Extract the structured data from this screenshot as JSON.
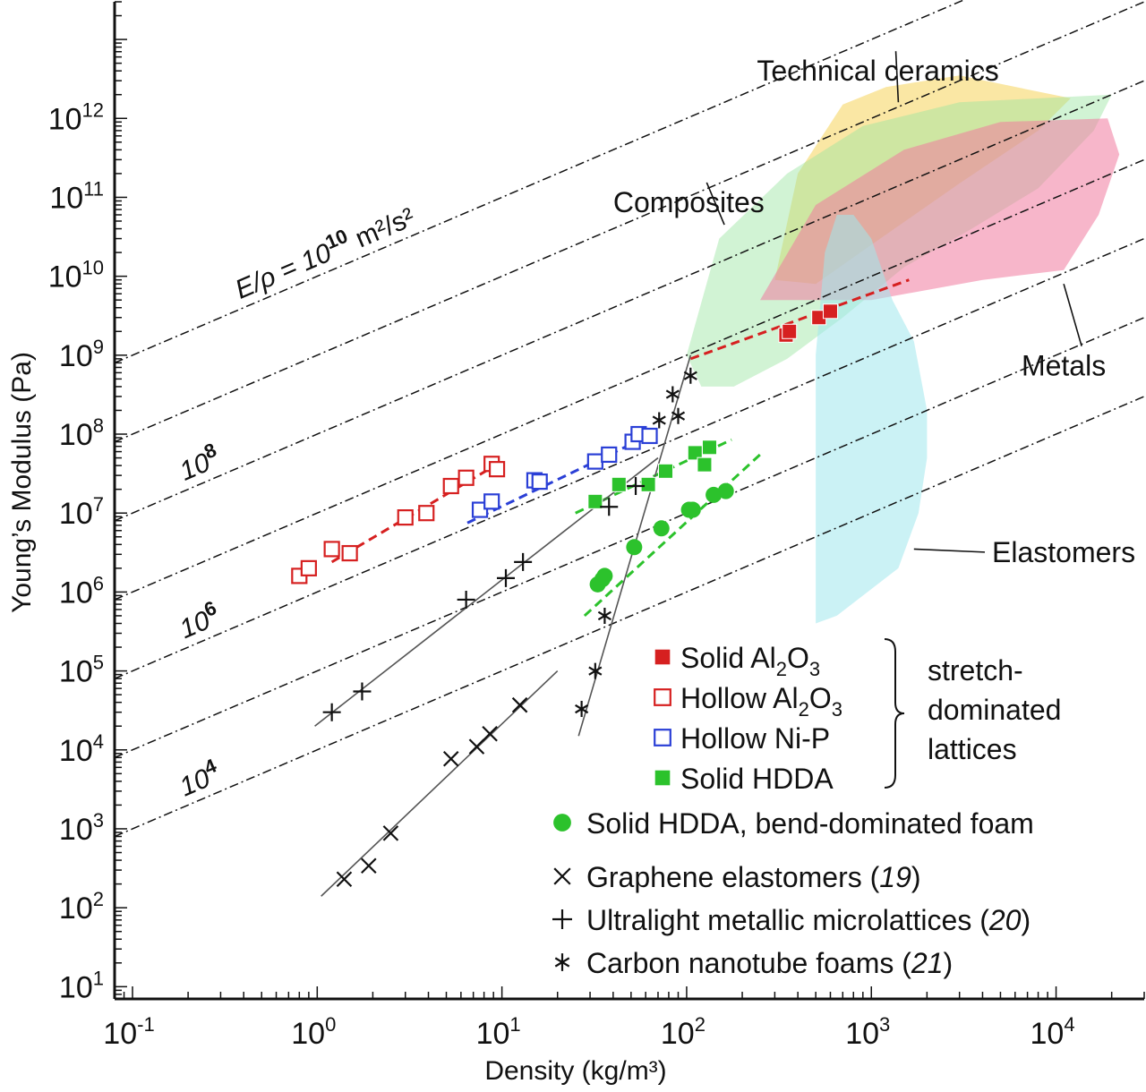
{
  "chart_data": {
    "type": "scatter",
    "xlabel": "Density (kg/m³)",
    "ylabel": "Young’s Modulus (Pa)",
    "x_scale": "log",
    "y_scale": "log",
    "xlim": [
      0.08,
      30000
    ],
    "ylim": [
      7,
      30000000000000.0
    ],
    "x_ticks": [
      {
        "value": 0.1,
        "mant": "10",
        "exp": "-1"
      },
      {
        "value": 1,
        "mant": "10",
        "exp": "0"
      },
      {
        "value": 10,
        "mant": "10",
        "exp": "1"
      },
      {
        "value": 100,
        "mant": "10",
        "exp": "2"
      },
      {
        "value": 1000,
        "mant": "10",
        "exp": "3"
      },
      {
        "value": 10000,
        "mant": "10",
        "exp": "4"
      }
    ],
    "y_ticks": [
      {
        "value": 10,
        "mant": "10",
        "exp": "1"
      },
      {
        "value": 100,
        "mant": "10",
        "exp": "2"
      },
      {
        "value": 1000,
        "mant": "10",
        "exp": "3"
      },
      {
        "value": 10000,
        "mant": "10",
        "exp": "4"
      },
      {
        "value": 100000,
        "mant": "10",
        "exp": "5"
      },
      {
        "value": 1000000,
        "mant": "10",
        "exp": "6"
      },
      {
        "value": 10000000,
        "mant": "10",
        "exp": "7"
      },
      {
        "value": 100000000,
        "mant": "10",
        "exp": "8"
      },
      {
        "value": 1000000000,
        "mant": "10",
        "exp": "9"
      },
      {
        "value": 10000000000,
        "mant": "10",
        "exp": "10"
      },
      {
        "value": 100000000000,
        "mant": "10",
        "exp": "11"
      },
      {
        "value": 1000000000000,
        "mant": "10",
        "exp": "12"
      }
    ],
    "grid": false,
    "legend_position": "bottom-right",
    "iso_lines": [
      {
        "specific_modulus": 10000000000,
        "label_text": "E/ρ = 10",
        "label_exp": "10",
        "label_unit": " m²/s²"
      },
      {
        "specific_modulus": 1000000000,
        "label_text": "",
        "label_exp": "",
        "label_unit": ""
      },
      {
        "specific_modulus": 100000000,
        "label_text": "10",
        "label_exp": "8",
        "label_unit": ""
      },
      {
        "specific_modulus": 10000000,
        "label_text": "",
        "label_exp": "",
        "label_unit": ""
      },
      {
        "specific_modulus": 1000000,
        "label_text": "10",
        "label_exp": "6",
        "label_unit": ""
      },
      {
        "specific_modulus": 100000,
        "label_text": "",
        "label_exp": "",
        "label_unit": ""
      },
      {
        "specific_modulus": 10000,
        "label_text": "10",
        "label_exp": "4",
        "label_unit": ""
      }
    ],
    "regions": [
      {
        "name": "Technical ceramics",
        "color": "#f6d35a",
        "opacity": 0.55,
        "polygon": [
          [
            300,
            9000000000.0
          ],
          [
            400,
            200000000000.0
          ],
          [
            700,
            1500000000000.0
          ],
          [
            1200,
            2500000000000.0
          ],
          [
            3000,
            3500000000000.0
          ],
          [
            12000,
            1800000000000.0
          ],
          [
            8000,
            700000000000.0
          ],
          [
            3000,
            150000000000.0
          ],
          [
            1000,
            25000000000.0
          ],
          [
            500,
            8000000000.0
          ]
        ]
      },
      {
        "name": "Composites",
        "color": "#9ae4a0",
        "opacity": 0.45,
        "polygon": [
          [
            100,
            1000000000.0
          ],
          [
            150,
            30000000000.0
          ],
          [
            350,
            200000000000.0
          ],
          [
            900,
            800000000000.0
          ],
          [
            3000,
            1600000000000.0
          ],
          [
            20000,
            2000000000000.0
          ],
          [
            16000,
            700000000000.0
          ],
          [
            8000,
            130000000000.0
          ],
          [
            3500,
            40000000000.0
          ],
          [
            1500,
            13000000000.0
          ],
          [
            700,
            3000000000.0
          ],
          [
            350,
            900000000.0
          ],
          [
            180,
            400000000.0
          ],
          [
            120,
            400000000.0
          ]
        ]
      },
      {
        "name": "Metals",
        "color": "#f07a9e",
        "opacity": 0.55,
        "polygon": [
          [
            250,
            5000000000.0
          ],
          [
            500,
            80000000000.0
          ],
          [
            1500,
            400000000000.0
          ],
          [
            5000,
            900000000000.0
          ],
          [
            19000,
            1000000000000.0
          ],
          [
            22000,
            350000000000.0
          ],
          [
            17000,
            60000000000.0
          ],
          [
            11000,
            12000000000.0
          ],
          [
            4000,
            9000000000.0
          ],
          [
            1000,
            5000000000.0
          ]
        ]
      },
      {
        "name": "Elastomers",
        "color": "#a0e8ec",
        "opacity": 0.55,
        "polygon": [
          [
            500,
            400000.0
          ],
          [
            650,
            500000.0
          ],
          [
            1400,
            2000000.0
          ],
          [
            1800,
            10000000.0
          ],
          [
            2000,
            50000000.0
          ],
          [
            2000,
            200000000.0
          ],
          [
            1700,
            1500000000.0
          ],
          [
            1300,
            5000000000.0
          ],
          [
            1000,
            30000000000.0
          ],
          [
            800,
            60000000000.0
          ],
          [
            650,
            60000000000.0
          ],
          [
            560,
            20000000000.0
          ],
          [
            500,
            1000000000.0
          ]
        ]
      }
    ],
    "region_labels": [
      {
        "text": "Technical ceramics",
        "x": 240,
        "y": 3000000000000.0,
        "leader_to": [
          1400,
          1600000000000.0
        ]
      },
      {
        "text": "Composites",
        "x": 40,
        "y": 65000000000.0,
        "leader_to": [
          160,
          45000000000.0
        ]
      },
      {
        "text": "Metals",
        "x": 6500,
        "y": 550000000.0,
        "leader_to": [
          11000,
          8000000000.0
        ]
      },
      {
        "text": "Elastomers",
        "x": 4500,
        "y": 2400000.0,
        "leader_to": [
          1700,
          3500000.0
        ]
      }
    ],
    "series": [
      {
        "name": "Solid Al₂O₃",
        "marker": "filled-square",
        "color": "#d62020",
        "x": [
          345,
          360,
          520,
          600
        ],
        "y": [
          1800000000.0,
          2000000000.0,
          3000000000.0,
          3600000000.0
        ],
        "fit": {
          "style": "dashed",
          "x": [
            105,
            1600
          ],
          "y": [
            900000000.0,
            9000000000.0
          ]
        }
      },
      {
        "name": "Hollow Al₂O₃",
        "marker": "open-square",
        "color": "#d62020",
        "x": [
          0.8,
          0.9,
          1.2,
          1.5,
          3.0,
          3.9,
          5.3,
          6.4,
          8.8,
          9.4
        ],
        "y": [
          1600000.0,
          2000000.0,
          3500000.0,
          3100000.0,
          8800000.0,
          10000000.0,
          22000000.0,
          28000000.0,
          42000000.0,
          36000000.0
        ],
        "fit": {
          "style": "dashed",
          "x": [
            1.2,
            10
          ],
          "y": [
            2400000.0,
            45000000.0
          ]
        }
      },
      {
        "name": "Hollow Ni-P",
        "marker": "open-square",
        "color": "#2a3fd6",
        "x": [
          7.6,
          8.8,
          15,
          16,
          32,
          38,
          51,
          55,
          63
        ],
        "y": [
          11000000.0,
          14000000.0,
          26000000.0,
          25000000.0,
          45000000.0,
          55000000.0,
          80000000.0,
          100000000.0,
          95000000.0
        ],
        "fit": {
          "style": "dashed",
          "x": [
            6.5,
            65
          ],
          "y": [
            7500000.0,
            100000000.0
          ]
        }
      },
      {
        "name": "Solid HDDA",
        "marker": "filled-square",
        "color": "#2cc22c",
        "x": [
          32,
          43,
          62,
          77,
          111,
          125,
          133
        ],
        "y": [
          14000000.0,
          23000000.0,
          23000000.0,
          34000000.0,
          58000000.0,
          41000000.0,
          68000000.0
        ],
        "fit": {
          "style": "dashed",
          "x": [
            25,
            175
          ],
          "y": [
            10000000.0,
            85000000.0
          ]
        }
      },
      {
        "name": "Solid HDDA, bend-dominated foam",
        "marker": "filled-circle",
        "color": "#2cc22c",
        "x": [
          33,
          35,
          36,
          52,
          73,
          103,
          108,
          140,
          163
        ],
        "y": [
          1250000.0,
          1450000.0,
          1600000.0,
          3700000.0,
          6400000.0,
          11000000.0,
          11000000.0,
          17000000.0,
          19000000.0
        ],
        "fit": {
          "style": "dashed",
          "x": [
            28,
            260
          ],
          "y": [
            500000.0,
            60000000.0
          ]
        }
      },
      {
        "name": "Graphene elastomers (19)",
        "marker": "x-cross",
        "color": "#111111",
        "x": [
          1.4,
          1.9,
          2.5,
          5.3,
          7.3,
          8.6,
          12.5
        ],
        "y": [
          230,
          340,
          880,
          7700,
          11000,
          16000,
          37000
        ],
        "fit": {
          "style": "solid",
          "x": [
            1.05,
            20
          ],
          "y": [
            140,
            100000.0
          ]
        }
      },
      {
        "name": "Ultralight metallic microlattices (20)",
        "marker": "plus",
        "color": "#111111",
        "x": [
          1.2,
          1.75,
          6.4,
          10.5,
          13,
          38,
          53
        ],
        "y": [
          30000,
          55000,
          800000.0,
          1500000.0,
          2400000.0,
          12000000.0,
          22000000.0
        ],
        "fit": {
          "style": "solid",
          "x": [
            0.97,
            70
          ],
          "y": [
            20000.0,
            50000000.0
          ]
        }
      },
      {
        "name": "Carbon nanotube foams (21)",
        "marker": "asterisk",
        "color": "#111111",
        "x": [
          27,
          32,
          36,
          71,
          84,
          90,
          105
        ],
        "y": [
          33000,
          100000.0,
          500000.0,
          150000000.0,
          320000000.0,
          170000000.0,
          550000000.0
        ],
        "fit": {
          "style": "solid",
          "x": [
            26,
            105
          ],
          "y": [
            15000.0,
            1000000000.0
          ]
        }
      }
    ],
    "legend": {
      "items": [
        {
          "marker": "filled-square",
          "color": "#d62020",
          "label": "Solid Al",
          "sub": "2",
          "label2": "O",
          "sub2": "3"
        },
        {
          "marker": "open-square",
          "color": "#d62020",
          "label": "Hollow Al",
          "sub": "2",
          "label2": "O",
          "sub2": "3"
        },
        {
          "marker": "open-square",
          "color": "#2a3fd6",
          "label": "Hollow Ni-P",
          "sub": "",
          "label2": "",
          "sub2": ""
        },
        {
          "marker": "filled-square",
          "color": "#2cc22c",
          "label": "Solid HDDA",
          "sub": "",
          "label2": "",
          "sub2": ""
        }
      ],
      "bracket_label": [
        "stretch-",
        "dominated",
        "lattices"
      ],
      "other_items": [
        {
          "marker": "filled-circle",
          "color": "#2cc22c",
          "label": "Solid HDDA, bend-dominated foam",
          "ref": ""
        },
        {
          "marker": "x-cross",
          "color": "#111111",
          "label": "Graphene elastomers (",
          "ref": "19"
        },
        {
          "marker": "plus",
          "color": "#111111",
          "label": "Ultralight metallic microlattices (",
          "ref": "20"
        },
        {
          "marker": "asterisk",
          "color": "#111111",
          "label": "Carbon nanotube foams (",
          "ref": "21"
        }
      ]
    }
  }
}
